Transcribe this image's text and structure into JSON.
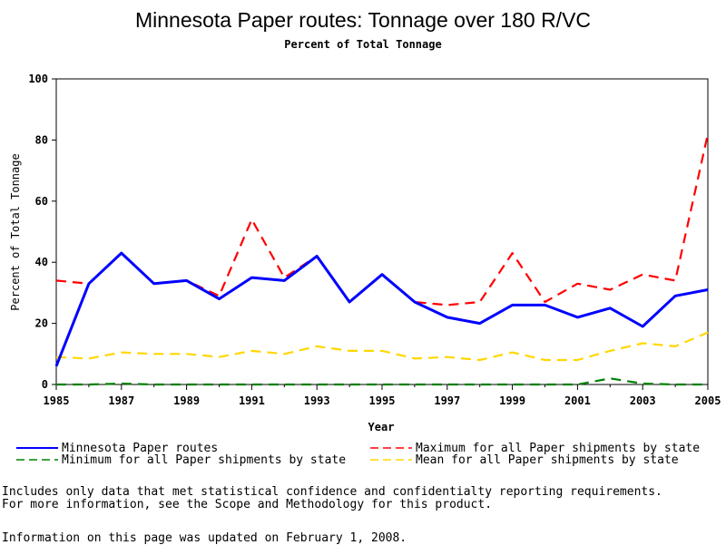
{
  "chart_data": {
    "type": "line",
    "title": "Minnesota Paper routes: Tonnage over 180 R/VC",
    "subtitle": "Percent of Total Tonnage",
    "xlabel": "Year",
    "ylabel": "Percent of Total Tonnage",
    "xlim": [
      1985,
      2005
    ],
    "ylim": [
      0,
      100
    ],
    "x_ticks": [
      1985,
      1987,
      1989,
      1991,
      1993,
      1995,
      1997,
      1999,
      2001,
      2003,
      2005
    ],
    "x_minor_ticks": [
      1986,
      1988,
      1990,
      1992,
      1994,
      1996,
      1998,
      2000,
      2002,
      2004
    ],
    "y_ticks": [
      0,
      20,
      40,
      60,
      80,
      100
    ],
    "x": [
      1985,
      1986,
      1987,
      1988,
      1989,
      1990,
      1991,
      1992,
      1993,
      1994,
      1995,
      1996,
      1997,
      1998,
      1999,
      2000,
      2001,
      2002,
      2003,
      2004,
      2005
    ],
    "series": [
      {
        "name": "Minnesota Paper routes",
        "color": "#0000ff",
        "style": "solid",
        "values": [
          6,
          33,
          43,
          33,
          34,
          28,
          35,
          34,
          42,
          27,
          36,
          27,
          22,
          20,
          26,
          26,
          22,
          25,
          19,
          29,
          31
        ]
      },
      {
        "name": "Maximum for all Paper shipments by state",
        "color": "#ff0000",
        "style": "dashed",
        "values": [
          34,
          33,
          43,
          33,
          34,
          29,
          54,
          35,
          42,
          27,
          36,
          27,
          26,
          27,
          43,
          27,
          33,
          31,
          36,
          34,
          82
        ]
      },
      {
        "name": "Minimum for all Paper shipments by state",
        "color": "#008000",
        "style": "dashed",
        "values": [
          0,
          0,
          0.3,
          0,
          0,
          0,
          0,
          0,
          0,
          0,
          0,
          0,
          0,
          0,
          0,
          0,
          0,
          2,
          0.3,
          0,
          0
        ]
      },
      {
        "name": "Mean for all Paper shipments by state",
        "color": "#ffd700",
        "style": "dashed",
        "values": [
          9,
          8.5,
          10.5,
          10,
          10,
          9,
          11,
          10,
          12.5,
          11,
          11,
          8.5,
          9,
          8,
          10.5,
          8,
          8,
          11,
          13.5,
          12.5,
          17
        ]
      }
    ],
    "legend_position": "bottom"
  },
  "notes": {
    "line1": "Includes only data that met statistical confidence and confidentialty reporting requirements.",
    "line2": "For more information, see the Scope and Methodology for this product.",
    "updated": "Information on this page was updated on February 1, 2008."
  }
}
